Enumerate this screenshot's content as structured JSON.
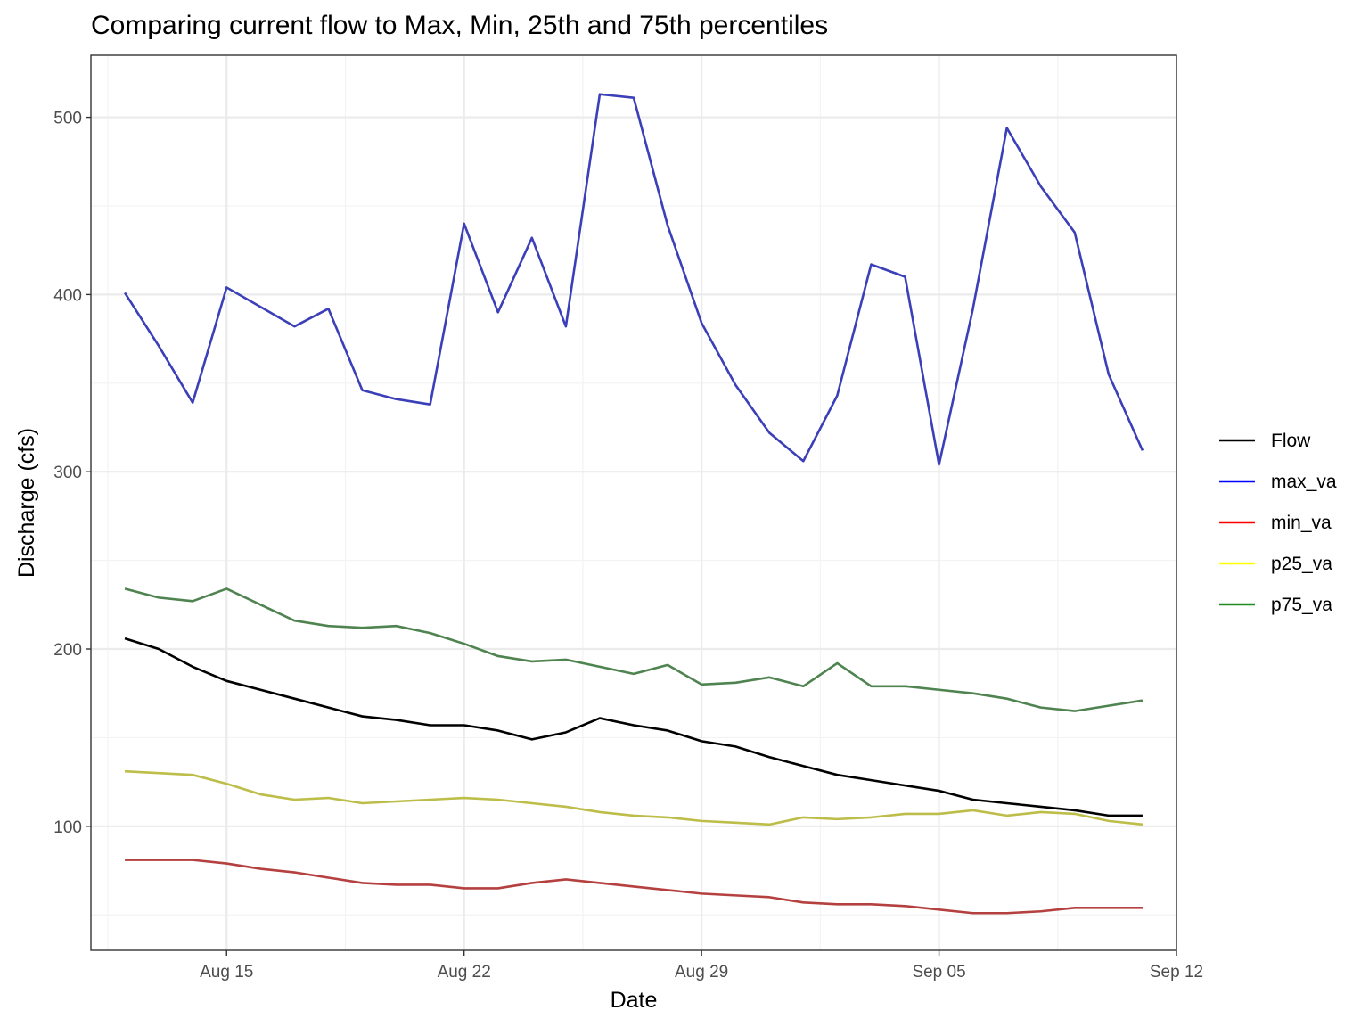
{
  "chart_data": {
    "type": "line",
    "title": "Comparing current flow to Max, Min, 25th and 75th percentiles",
    "xlabel": "Date",
    "ylabel": "Discharge (cfs)",
    "x": [
      "2023-08-12",
      "2023-08-13",
      "2023-08-14",
      "2023-08-15",
      "2023-08-16",
      "2023-08-17",
      "2023-08-18",
      "2023-08-19",
      "2023-08-20",
      "2023-08-21",
      "2023-08-22",
      "2023-08-23",
      "2023-08-24",
      "2023-08-25",
      "2023-08-26",
      "2023-08-27",
      "2023-08-28",
      "2023-08-29",
      "2023-08-30",
      "2023-08-31",
      "2023-09-01",
      "2023-09-02",
      "2023-09-03",
      "2023-09-04",
      "2023-09-05",
      "2023-09-06",
      "2023-09-07",
      "2023-09-08",
      "2023-09-09",
      "2023-09-10",
      "2023-09-11"
    ],
    "xlim": [
      "2023-08-11",
      "2023-09-12"
    ],
    "ylim": [
      30,
      535
    ],
    "x_ticks": [
      {
        "value": "2023-08-15",
        "label": "Aug 15"
      },
      {
        "value": "2023-08-22",
        "label": "Aug 22"
      },
      {
        "value": "2023-08-29",
        "label": "Aug 29"
      },
      {
        "value": "2023-09-05",
        "label": "Sep 05"
      },
      {
        "value": "2023-09-12",
        "label": "Sep 12"
      }
    ],
    "y_ticks": [
      100,
      200,
      300,
      400,
      500
    ],
    "grid": true,
    "legend_position": "right",
    "series": [
      {
        "name": "Flow",
        "legend_color": "#000000",
        "color": "#000000",
        "values": [
          206,
          200,
          190,
          182,
          177,
          172,
          167,
          162,
          160,
          157,
          157,
          154,
          149,
          153,
          161,
          157,
          154,
          148,
          145,
          139,
          134,
          129,
          126,
          123,
          120,
          115,
          113,
          111,
          109,
          106,
          106
        ]
      },
      {
        "name": "max_va",
        "legend_color": "#0000ff",
        "color": "#3b3fb8",
        "values": [
          401,
          371,
          339,
          404,
          393,
          382,
          392,
          346,
          341,
          338,
          440,
          390,
          432,
          382,
          513,
          511,
          439,
          384,
          349,
          322,
          306,
          343,
          417,
          410,
          304,
          392,
          494,
          461,
          435,
          355,
          312
        ]
      },
      {
        "name": "min_va",
        "legend_color": "#ff0000",
        "color": "#b54040",
        "values": [
          81,
          81,
          81,
          79,
          76,
          74,
          71,
          68,
          67,
          67,
          65,
          65,
          68,
          70,
          68,
          66,
          64,
          62,
          61,
          60,
          57,
          56,
          56,
          55,
          53,
          51,
          51,
          52,
          54,
          54,
          54
        ]
      },
      {
        "name": "p25_va",
        "legend_color": "#ffff00",
        "color": "#bdbd4a",
        "values": [
          131,
          130,
          129,
          124,
          118,
          115,
          116,
          113,
          114,
          115,
          116,
          115,
          113,
          111,
          108,
          106,
          105,
          103,
          102,
          101,
          105,
          104,
          105,
          107,
          107,
          109,
          106,
          108,
          107,
          103,
          101
        ]
      },
      {
        "name": "p75_va",
        "legend_color": "#228b22",
        "color": "#4f8350",
        "values": [
          234,
          229,
          227,
          234,
          225,
          216,
          213,
          212,
          213,
          209,
          203,
          196,
          193,
          194,
          190,
          186,
          191,
          180,
          181,
          184,
          179,
          192,
          179,
          179,
          177,
          175,
          172,
          167,
          165,
          168,
          171
        ]
      }
    ]
  }
}
